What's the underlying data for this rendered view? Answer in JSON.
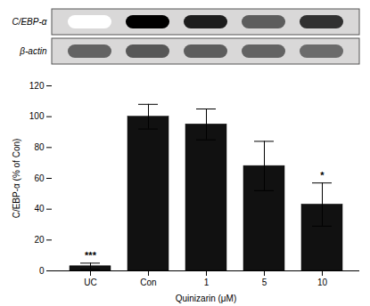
{
  "chart_data": [
    {
      "type": "blot",
      "categories": [
        "C/EBP-α",
        "β-actin"
      ],
      "cells": [
        [
          0.04,
          0.92,
          0.82,
          0.6,
          0.75
        ],
        [
          0.58,
          0.62,
          0.6,
          0.58,
          0.55
        ]
      ],
      "tick_labels": "y"
    },
    {
      "type": "bar",
      "categories": [
        "UC",
        "Con",
        "1",
        "5",
        "10"
      ],
      "values": [
        3.0,
        100.0,
        95.0,
        68.0,
        43.0
      ],
      "errors": [
        2.0,
        8.0,
        10.0,
        16.0,
        14.0
      ],
      "color": "#111111",
      "xlabel": "Quinizarin (μM)",
      "ylabel": "C/EBP-α (% of Con)",
      "ylim": [
        0,
        120
      ],
      "yticks": [
        0,
        20,
        40,
        60,
        80,
        100,
        120
      ],
      "significance": {
        "UC": "***",
        "10": "*"
      }
    }
  ]
}
